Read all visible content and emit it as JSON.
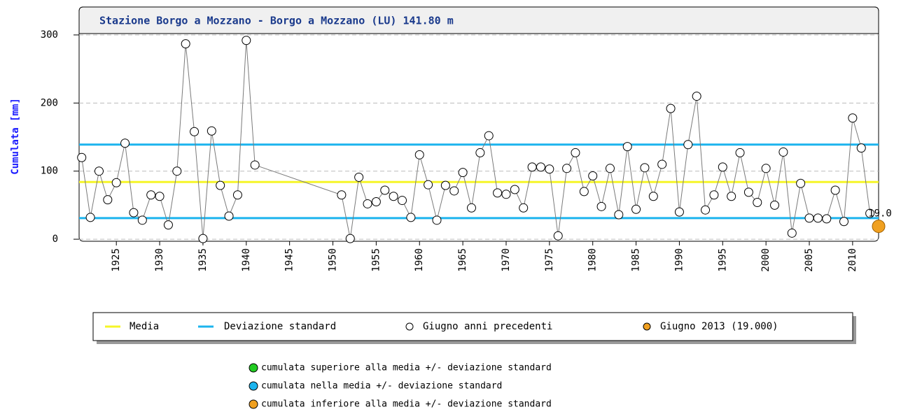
{
  "chart_data": {
    "type": "line",
    "title": "Stazione Borgo a Mozzano - Borgo a Mozzano (LU) 141.80 m",
    "y_label": "Cumulata [mm]",
    "ylim": [
      -3,
      302
    ],
    "yticks": [
      0,
      100,
      200,
      300
    ],
    "grid": true,
    "xlim": [
      1920.7,
      2013
    ],
    "xticks": [
      1925,
      1930,
      1935,
      1940,
      1945,
      1950,
      1955,
      1960,
      1965,
      1970,
      1975,
      1980,
      1985,
      1990,
      1995,
      2000,
      2005,
      2010
    ],
    "reference_lines": [
      {
        "name": "Media",
        "color": "#f5f528",
        "values": [
          84
        ]
      },
      {
        "name": "Deviazione standard",
        "color": "#1cb4ee",
        "values": [
          31,
          139
        ]
      }
    ],
    "series": [
      {
        "name": "Giugno anni precedenti",
        "color": "#7a7a7a",
        "x": [
          1921,
          1922,
          1923,
          1924,
          1925,
          1926,
          1927,
          1928,
          1929,
          1930,
          1931,
          1932,
          1933,
          1934,
          1935,
          1936,
          1937,
          1938,
          1939,
          1940,
          1941,
          1951,
          1952,
          1953,
          1954,
          1955,
          1956,
          1957,
          1958,
          1959,
          1960,
          1961,
          1962,
          1963,
          1964,
          1965,
          1966,
          1967,
          1968,
          1969,
          1970,
          1971,
          1972,
          1973,
          1974,
          1975,
          1976,
          1977,
          1978,
          1979,
          1980,
          1981,
          1982,
          1983,
          1984,
          1985,
          1986,
          1987,
          1988,
          1989,
          1990,
          1991,
          1992,
          1993,
          1994,
          1995,
          1996,
          1997,
          1998,
          1999,
          2000,
          2001,
          2002,
          2003,
          2004,
          2005,
          2006,
          2007,
          2008,
          2009,
          2010,
          2011,
          2012
        ],
        "values": [
          120,
          32,
          100,
          58,
          83,
          141,
          39,
          28,
          65,
          63,
          21,
          100,
          287,
          158,
          1,
          159,
          79,
          34,
          65,
          292,
          109,
          65,
          1,
          91,
          52,
          55,
          72,
          63,
          57,
          32,
          124,
          80,
          28,
          79,
          71,
          98,
          46,
          127,
          152,
          68,
          66,
          73,
          46,
          106,
          106,
          103,
          5,
          104,
          127,
          70,
          93,
          48,
          104,
          36,
          136,
          44,
          105,
          63,
          110,
          192,
          40,
          139,
          210,
          43,
          65,
          106,
          63,
          127,
          69,
          54,
          104,
          50,
          128,
          9,
          82,
          31,
          31,
          30,
          72,
          26,
          178,
          134,
          38
        ]
      },
      {
        "name": "Giugno 2013 (19.000)",
        "color": "#f0a020",
        "x": [
          2013
        ],
        "values": [
          19
        ],
        "value_labels": [
          "19.0"
        ]
      }
    ],
    "notes": [
      {
        "text": "cumulata superiore alla media +/- deviazione standard",
        "color": "#22cc22"
      },
      {
        "text": "cumulata nella media +/- deviazione standard",
        "color": "#1cb4ee"
      },
      {
        "text": "cumulata inferiore alla media +/- deviazione standard",
        "color": "#f0a020"
      }
    ]
  }
}
